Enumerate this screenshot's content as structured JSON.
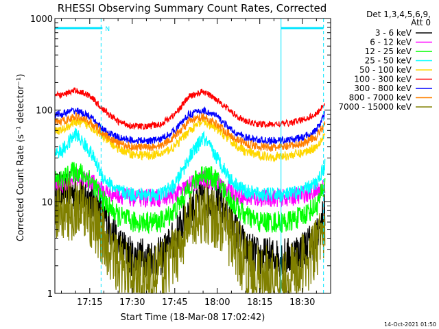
{
  "chart_data": {
    "type": "line",
    "title": "RHESSI Observing Summary Count Rates, Corrected",
    "xlabel": "Start Time (18-Mar-08 17:02:42)",
    "ylabel": "Corrected Count Rate (s⁻¹ detector⁻¹)",
    "y_scale": "log",
    "ylim": [
      1,
      1000
    ],
    "xlim_minutes_after_1700": [
      2.7,
      100
    ],
    "y_ticks": [
      {
        "value": 1,
        "label": "1"
      },
      {
        "value": 10,
        "label": "10"
      },
      {
        "value": 100,
        "label": "100"
      },
      {
        "value": 1000,
        "label": "1000"
      }
    ],
    "x_ticks": [
      {
        "value": 15,
        "label": "17:15"
      },
      {
        "value": 30,
        "label": "17:30"
      },
      {
        "value": 45,
        "label": "17:45"
      },
      {
        "value": 60,
        "label": "18:00"
      },
      {
        "value": 75,
        "label": "18:15"
      },
      {
        "value": 90,
        "label": "18:30"
      }
    ],
    "legend_header": [
      "Det 1,3,4,5,6,9,",
      "Att 0"
    ],
    "legend_position": "right",
    "flag_bars": {
      "color": "#00e5ff",
      "label": "N",
      "segments": [
        [
          2.7,
          19.5
        ],
        [
          82.5,
          97.5
        ]
      ],
      "vertical_markers": [
        {
          "x": 2.7,
          "style": "solid"
        },
        {
          "x": 19,
          "style": "dashed"
        },
        {
          "x": 82.5,
          "style": "solid"
        },
        {
          "x": 97.5,
          "style": "dashed"
        }
      ]
    },
    "series": [
      {
        "name": "3 - 6 keV",
        "color": "#000000",
        "x": [
          5,
          10,
          15,
          20,
          25,
          30,
          35,
          40,
          45,
          50,
          55,
          60,
          65,
          70,
          75,
          80,
          85,
          90,
          95,
          98
        ],
        "values": [
          13,
          13,
          11,
          7,
          3.5,
          2.5,
          2.5,
          2.5,
          4,
          8,
          11,
          10,
          6,
          3,
          2.5,
          2.5,
          2.5,
          3,
          4,
          8
        ]
      },
      {
        "name": "6 - 12 keV",
        "color": "#ff00ff",
        "x": [
          5,
          10,
          15,
          20,
          25,
          30,
          35,
          40,
          45,
          50,
          55,
          60,
          65,
          70,
          75,
          80,
          85,
          90,
          95,
          98
        ],
        "values": [
          15,
          19,
          17,
          13,
          12,
          11,
          11,
          11,
          12,
          15,
          18,
          16,
          13,
          11,
          11,
          11,
          11,
          12,
          13,
          15
        ]
      },
      {
        "name": "12 - 25 keV",
        "color": "#00ff00",
        "x": [
          5,
          10,
          15,
          20,
          25,
          30,
          35,
          40,
          45,
          50,
          55,
          60,
          65,
          70,
          75,
          80,
          85,
          90,
          95,
          98
        ],
        "values": [
          17,
          22,
          18,
          10,
          7,
          6,
          6,
          6,
          8,
          14,
          21,
          17,
          10,
          7,
          6,
          6,
          6,
          7,
          9,
          15
        ]
      },
      {
        "name": "25 - 50 keV",
        "color": "#00ffff",
        "x": [
          5,
          10,
          15,
          20,
          25,
          30,
          35,
          40,
          45,
          50,
          55,
          60,
          65,
          70,
          75,
          80,
          85,
          90,
          95,
          98
        ],
        "values": [
          35,
          55,
          36,
          18,
          13,
          12,
          12,
          12,
          15,
          30,
          50,
          30,
          17,
          13,
          12,
          12,
          12,
          13,
          16,
          25
        ]
      },
      {
        "name": "50 - 100 keV",
        "color": "#ffd700",
        "x": [
          5,
          10,
          15,
          20,
          25,
          30,
          35,
          40,
          45,
          50,
          55,
          60,
          65,
          70,
          75,
          80,
          85,
          90,
          95,
          98
        ],
        "values": [
          60,
          75,
          68,
          50,
          38,
          33,
          32,
          33,
          40,
          60,
          75,
          62,
          45,
          35,
          32,
          31,
          32,
          34,
          40,
          55
        ]
      },
      {
        "name": "100 - 300 keV",
        "color": "#ff0000",
        "x": [
          5,
          10,
          15,
          20,
          25,
          30,
          35,
          40,
          45,
          50,
          55,
          60,
          65,
          70,
          75,
          80,
          85,
          90,
          95,
          98
        ],
        "values": [
          145,
          165,
          145,
          100,
          75,
          67,
          66,
          70,
          90,
          140,
          160,
          130,
          95,
          75,
          70,
          70,
          72,
          78,
          90,
          120
        ]
      },
      {
        "name": "300 - 800 keV",
        "color": "#0000ff",
        "x": [
          5,
          10,
          15,
          20,
          25,
          30,
          35,
          40,
          45,
          50,
          55,
          60,
          65,
          70,
          75,
          80,
          85,
          90,
          95,
          98
        ],
        "values": [
          90,
          100,
          85,
          60,
          50,
          47,
          46,
          48,
          60,
          90,
          100,
          85,
          60,
          50,
          47,
          46,
          47,
          50,
          60,
          90
        ]
      },
      {
        "name": "800 - 7000 keV",
        "color": "#ff8000",
        "x": [
          5,
          10,
          15,
          20,
          25,
          30,
          35,
          40,
          45,
          50,
          55,
          60,
          65,
          70,
          75,
          80,
          85,
          90,
          95,
          98
        ],
        "values": [
          75,
          85,
          75,
          55,
          43,
          40,
          39,
          41,
          52,
          75,
          85,
          70,
          52,
          43,
          40,
          39,
          40,
          43,
          52,
          70
        ]
      },
      {
        "name": "7000 - 15000 keV",
        "color": "#808000",
        "x": [
          5,
          10,
          15,
          20,
          25,
          30,
          35,
          40,
          45,
          50,
          55,
          60,
          65,
          70,
          75,
          80,
          85,
          90,
          95,
          98
        ],
        "values": [
          8,
          8.5,
          7,
          4,
          2,
          1.5,
          1.5,
          1.6,
          2.5,
          6,
          8,
          6.5,
          4,
          2,
          1.5,
          1.5,
          1.5,
          2,
          3,
          6
        ]
      }
    ],
    "grid": false
  },
  "footer": {
    "timestamp": "14-Oct-2021 01:50"
  }
}
